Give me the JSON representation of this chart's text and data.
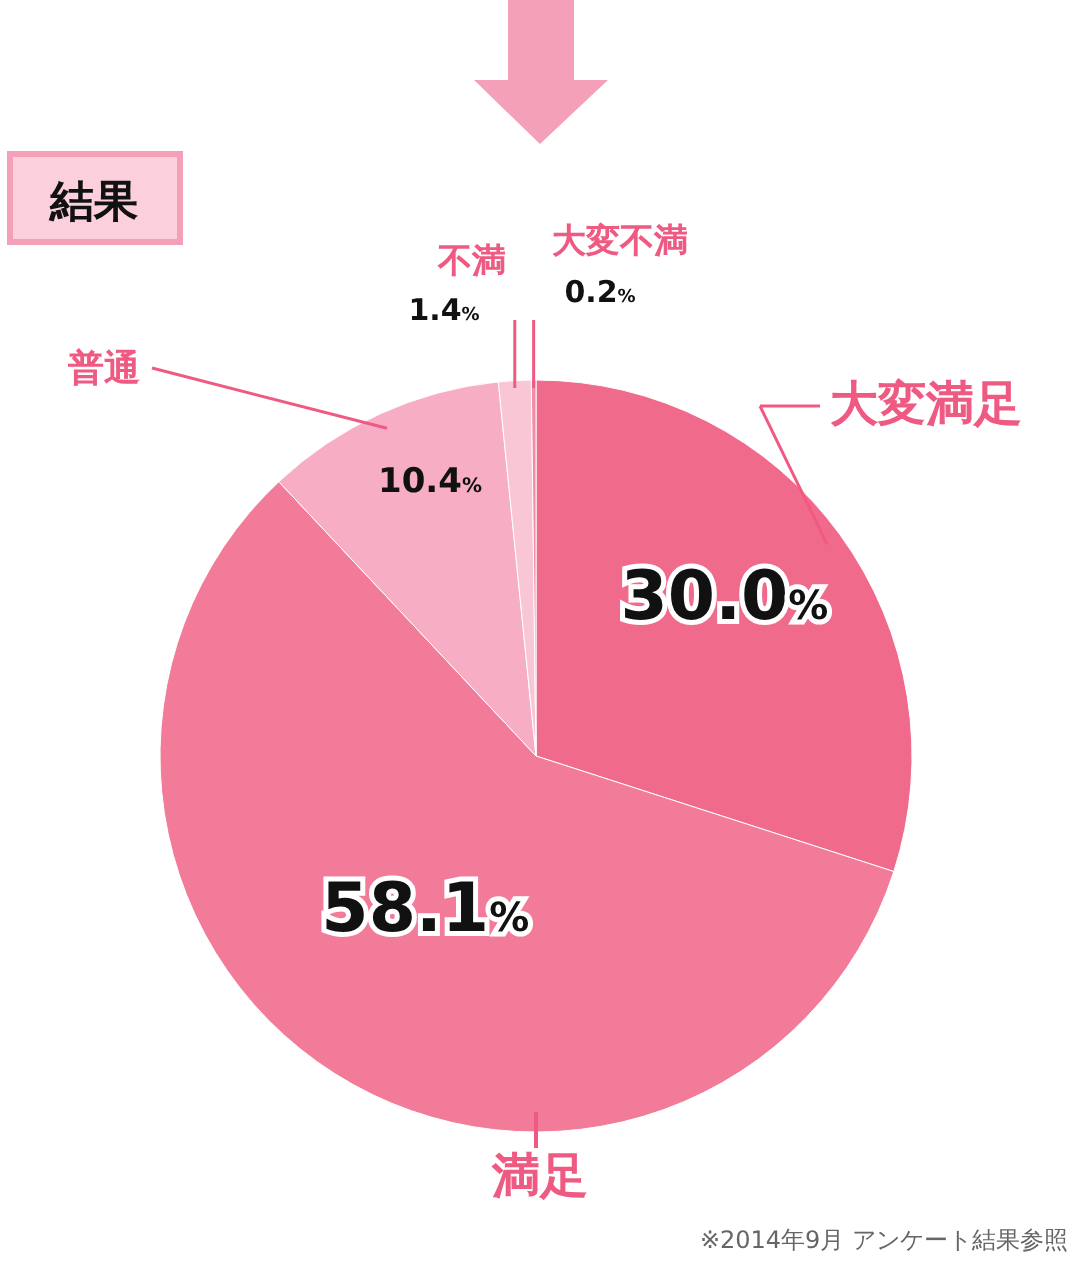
{
  "chart_data": {
    "type": "pie",
    "title": "結果",
    "categories": [
      "大変満足",
      "満足",
      "普通",
      "不満",
      "大変不満"
    ],
    "values": [
      30.0,
      58.1,
      10.4,
      1.4,
      0.2
    ],
    "colors": [
      "#f06a8c",
      "#f27b9a",
      "#f7aec4",
      "#f9c6d5",
      "#f48aa6"
    ],
    "value_labels": [
      "30.0%",
      "58.1%",
      "10.4%",
      "1.4%",
      "0.2%"
    ],
    "annotations": [
      "※2014年9月 アンケート結果参照"
    ]
  }
}
